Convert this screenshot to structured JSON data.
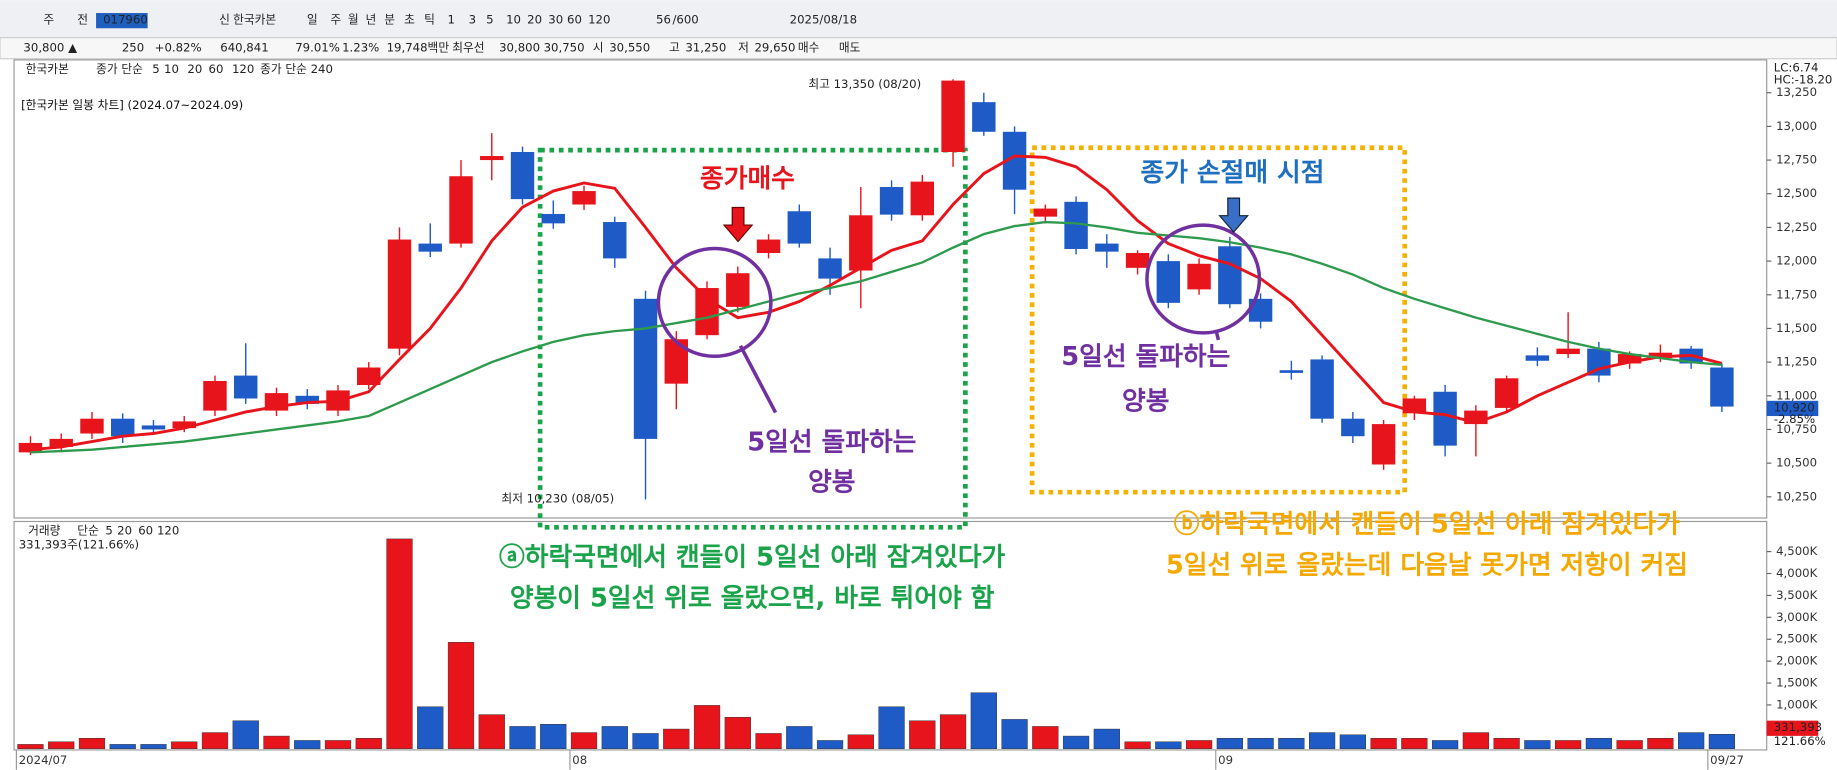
{
  "toolbar": {
    "items": [
      "주",
      "전",
      "017960",
      "신",
      "한국카본",
      "일",
      "주",
      "월",
      "년",
      "분",
      "초",
      "틱",
      "1",
      "3",
      "5",
      "10",
      "20",
      "30",
      "60",
      "120",
      "56",
      "/600",
      "2025/08/18"
    ]
  },
  "quote_bar": {
    "items": [
      "30,800 ▲",
      "250",
      "+0.82%",
      "640,841",
      "79.01%",
      "1.23%",
      "19,748백만",
      "최우선",
      "30,800",
      "30,750",
      "시",
      "30,550",
      "고",
      "31,250",
      "저",
      "29,650",
      "매수",
      "매도"
    ]
  },
  "price_legend": [
    "한국카본",
    "종가 단순",
    "5",
    "10",
    "20",
    "60",
    "120",
    "종가 단순 240"
  ],
  "volume_legend": [
    "거래량",
    "단순",
    "5",
    "20",
    "60",
    "120",
    "331,393주(121.66%)"
  ],
  "side_labels": [
    "LC:6.74",
    "HC:-18.20",
    "10,920",
    "-2.85%",
    "331,393",
    "121.66%"
  ],
  "annotations": {
    "title": "[한국카본 일봉 차트] (2024.07~2024.09)",
    "high": "최고 13,350 (08/20)",
    "low": "최저 10,230 (08/05)",
    "buy": "종가매수",
    "stop": "종가 손절매 시점",
    "breakout_1": [
      "5일선 돌파하는",
      "양봉"
    ],
    "breakout_2": [
      "5일선 돌파하는",
      "양봉"
    ],
    "note_a": [
      "ⓐ하락국면에서 캔들이 5일선 아래 잠겨있다가",
      "양봉이 5일선 위로 올랐으면, 바로 튀어야 함"
    ],
    "note_b": [
      "ⓑ하락국면에서 캔들이 5일선 아래 잠겨있다가",
      "5일선 위로 올랐는데 다음날 못가면 저항이 커짐"
    ]
  },
  "chart_data": {
    "type": "candlestick",
    "up_color": "#e8141b",
    "down_color": "#1e5bc6",
    "categories": [
      "2024/07",
      null,
      null,
      null,
      null,
      null,
      null,
      null,
      null,
      null,
      null,
      null,
      null,
      null,
      null,
      null,
      null,
      null,
      "08",
      null,
      null,
      null,
      null,
      null,
      null,
      null,
      null,
      null,
      null,
      null,
      null,
      null,
      null,
      null,
      null,
      null,
      null,
      null,
      null,
      "09",
      null,
      null,
      null,
      null,
      null,
      null,
      null,
      null,
      null,
      null,
      null,
      null,
      null,
      null,
      null,
      "09/27"
    ],
    "open": [
      10580,
      10620,
      10720,
      10830,
      10780,
      10760,
      10890,
      11150,
      10890,
      11000,
      10890,
      11080,
      11350,
      12130,
      12130,
      12750,
      12810,
      12350,
      12420,
      12290,
      11720,
      11090,
      11450,
      11660,
      12060,
      12370,
      12020,
      11930,
      12550,
      12340,
      12810,
      13180,
      12960,
      12330,
      12440,
      12130,
      11950,
      12000,
      11790,
      12110,
      11720,
      11190,
      11270,
      10830,
      10490,
      10870,
      11030,
      10790,
      10910,
      11300,
      11310,
      11350,
      11240,
      11280,
      11350,
      11210
    ],
    "high": [
      10700,
      10720,
      10880,
      10870,
      10820,
      10850,
      11150,
      11390,
      11060,
      11050,
      11080,
      11250,
      12250,
      12280,
      12750,
      12950,
      12850,
      12450,
      12560,
      12330,
      11780,
      11480,
      11850,
      11960,
      12200,
      12420,
      12100,
      12550,
      12600,
      12640,
      13350,
      13250,
      13000,
      12420,
      12480,
      12200,
      12080,
      12050,
      12020,
      12180,
      11760,
      11260,
      11300,
      10880,
      10820,
      11000,
      11080,
      10930,
      11150,
      11360,
      11620,
      11400,
      11330,
      11380,
      11370,
      11240
    ],
    "low": [
      10560,
      10580,
      10680,
      10650,
      10720,
      10730,
      10850,
      10940,
      10850,
      10900,
      10850,
      11050,
      11300,
      12030,
      12100,
      12600,
      12420,
      12240,
      12380,
      11950,
      10230,
      10900,
      11420,
      11620,
      12020,
      12100,
      11750,
      11650,
      12300,
      12300,
      12700,
      12930,
      12350,
      12280,
      12050,
      11950,
      11900,
      11650,
      11750,
      11650,
      11500,
      11120,
      10800,
      10650,
      10450,
      10820,
      10550,
      10550,
      10880,
      11220,
      11280,
      11100,
      11200,
      11250,
      11200,
      10880
    ],
    "close": [
      10650,
      10680,
      10830,
      10700,
      10750,
      10810,
      11110,
      10980,
      11020,
      10940,
      11040,
      11210,
      12160,
      12070,
      12630,
      12780,
      12460,
      12280,
      12520,
      12020,
      10680,
      11420,
      11800,
      11910,
      12160,
      12130,
      11870,
      12340,
      12345,
      12590,
      13340,
      12960,
      12530,
      12390,
      12090,
      12070,
      12060,
      11690,
      11980,
      11680,
      11550,
      11170,
      10830,
      10700,
      10790,
      10980,
      10630,
      10890,
      11130,
      11260,
      11350,
      11150,
      11310,
      11320,
      11240,
      10920
    ],
    "series": [
      {
        "name": "5",
        "color": "#e8141b",
        "values": [
          10600,
          10620,
          10660,
          10700,
          10720,
          10760,
          10820,
          10880,
          10920,
          10950,
          10960,
          11030,
          11270,
          11500,
          11800,
          12150,
          12400,
          12520,
          12580,
          12540,
          12250,
          11950,
          11720,
          11580,
          11620,
          11700,
          11820,
          11950,
          12080,
          12150,
          12420,
          12650,
          12780,
          12770,
          12700,
          12530,
          12300,
          12130,
          12040,
          11980,
          11870,
          11700,
          11450,
          11200,
          10950,
          10880,
          10860,
          10800,
          10880,
          11000,
          11100,
          11200,
          11250,
          11290,
          11300,
          11240
        ]
      },
      {
        "name": "20",
        "color": "#2e9a4e",
        "values": [
          10580,
          10590,
          10600,
          10620,
          10640,
          10660,
          10690,
          10720,
          10750,
          10780,
          10810,
          10850,
          10950,
          11050,
          11150,
          11250,
          11330,
          11400,
          11450,
          11480,
          11500,
          11540,
          11580,
          11640,
          11700,
          11760,
          11800,
          11850,
          11920,
          11990,
          12100,
          12200,
          12260,
          12290,
          12280,
          12250,
          12210,
          12190,
          12170,
          12140,
          12100,
          12050,
          11980,
          11900,
          11800,
          11720,
          11650,
          11580,
          11520,
          11460,
          11400,
          11350,
          11310,
          11280,
          11250,
          11230
        ]
      }
    ],
    "ylim": [
      10093,
      13485
    ],
    "yticks": [
      {
        "value": 10250,
        "label": "10,250"
      },
      {
        "value": 10500,
        "label": "10,500"
      },
      {
        "value": 10750,
        "label": "10,750"
      },
      {
        "value": 11000,
        "label": "11,000"
      },
      {
        "value": 11250,
        "label": "11,250"
      },
      {
        "value": 11500,
        "label": "11,500"
      },
      {
        "value": 11750,
        "label": "11,750"
      },
      {
        "value": 12000,
        "label": "12,000"
      },
      {
        "value": 12250,
        "label": "12,250"
      },
      {
        "value": 12500,
        "label": "12,500"
      },
      {
        "value": 12750,
        "label": "12,750"
      },
      {
        "value": 13000,
        "label": "13,000"
      },
      {
        "value": 13250,
        "label": "13,250"
      }
    ],
    "volume": {
      "values": [
        100,
        160,
        240,
        100,
        100,
        160,
        370,
        640,
        290,
        190,
        190,
        240,
        4790,
        960,
        2430,
        780,
        510,
        560,
        370,
        510,
        350,
        450,
        990,
        720,
        350,
        510,
        190,
        320,
        960,
        640,
        780,
        1280,
        670,
        510,
        290,
        450,
        160,
        160,
        190,
        240,
        240,
        240,
        370,
        320,
        240,
        240,
        190,
        370,
        240,
        190,
        190,
        240,
        190,
        240,
        370,
        331
      ],
      "ylim": [
        0,
        4920
      ],
      "yticks": [
        {
          "value": 1000,
          "label": "1,000K"
        },
        {
          "value": 1500,
          "label": "1,500K"
        },
        {
          "value": 2000,
          "label": "2,000K"
        },
        {
          "value": 2500,
          "label": "2,500K"
        },
        {
          "value": 3000,
          "label": "3,000K"
        },
        {
          "value": 3500,
          "label": "3,500K"
        },
        {
          "value": 4000,
          "label": "4,000K"
        },
        {
          "value": 4500,
          "label": "4,500K"
        }
      ]
    }
  }
}
